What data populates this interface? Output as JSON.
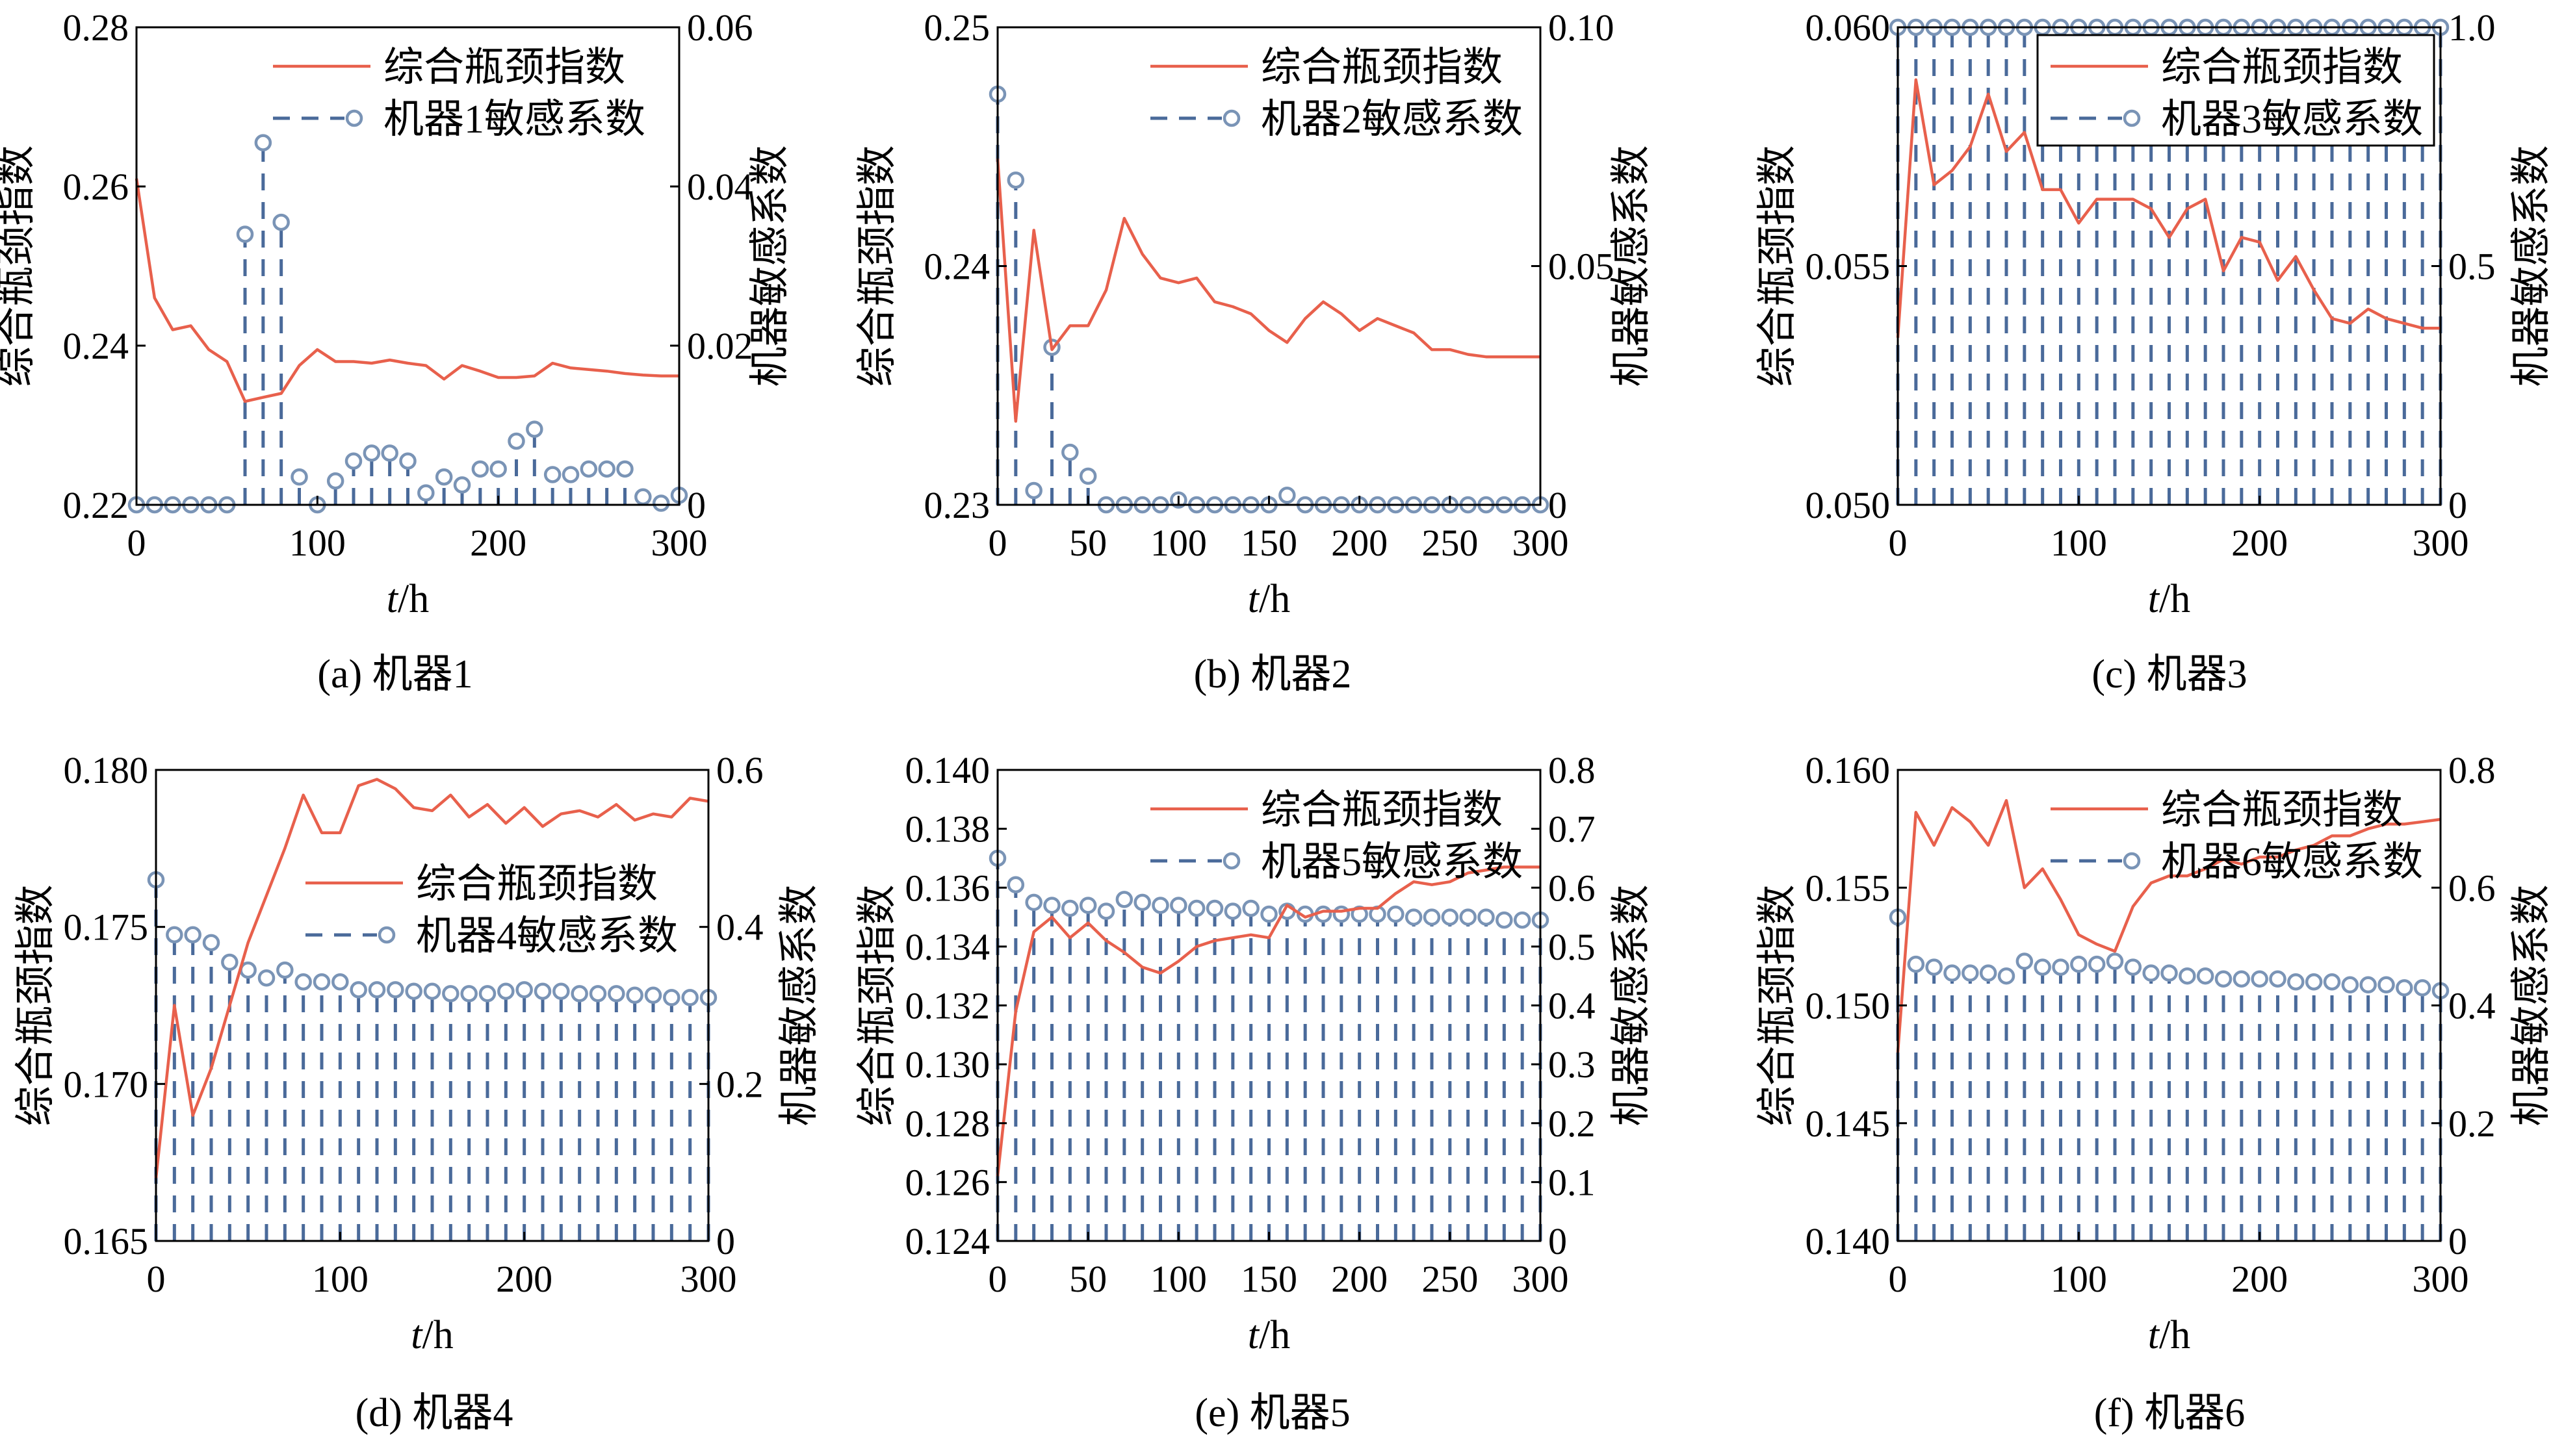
{
  "colors": {
    "bottleneck_line": "#e8604c",
    "stem": "#4a6a9a",
    "marker_edge": "#7a94b6",
    "marker_face": "#ffffff",
    "axis": "#000000"
  },
  "legend": {
    "line_label": "综合瓶颈指数",
    "stem_labels": [
      "机器1敏感系数",
      "机器2敏感系数",
      "机器3敏感系数",
      "机器4敏感系数",
      "机器5敏感系数",
      "机器6敏感系数"
    ]
  },
  "chart_data": [
    {
      "type": "line+stem",
      "caption": "(a) 机器1",
      "xlabel": "t/h",
      "ylabel_left": "综合瓶颈指数",
      "ylabel_right": "机器敏感系数",
      "xlim": [
        0,
        300
      ],
      "xticks": [
        "0",
        "100",
        "200",
        "300"
      ],
      "ylim_left": [
        0.22,
        0.28
      ],
      "yticks_left": [
        "0.22",
        "0.24",
        "0.26",
        "0.28"
      ],
      "ylim_right": [
        0,
        0.06
      ],
      "yticks_right": [
        "0",
        "0.02",
        "0.04",
        "0.06"
      ],
      "legend_position": "top-right",
      "legend_box": false,
      "line": {
        "x": [
          0,
          10,
          20,
          30,
          40,
          50,
          60,
          70,
          80,
          90,
          100,
          110,
          120,
          130,
          140,
          150,
          160,
          170,
          180,
          190,
          200,
          210,
          220,
          230,
          240,
          250,
          260,
          270,
          280,
          290,
          300
        ],
        "y": [
          0.261,
          0.246,
          0.242,
          0.2425,
          0.2395,
          0.238,
          0.233,
          0.2335,
          0.234,
          0.2375,
          0.2395,
          0.238,
          0.238,
          0.2378,
          0.2382,
          0.2378,
          0.2375,
          0.2358,
          0.2375,
          0.2368,
          0.236,
          0.236,
          0.2362,
          0.2378,
          0.2372,
          0.237,
          0.2368,
          0.2365,
          0.2363,
          0.2362,
          0.2362
        ]
      },
      "stems": {
        "x": [
          0,
          10,
          20,
          30,
          40,
          50,
          60,
          70,
          80,
          90,
          100,
          110,
          120,
          130,
          140,
          150,
          160,
          170,
          180,
          190,
          200,
          210,
          220,
          230,
          240,
          250,
          260,
          270,
          280,
          290,
          300
        ],
        "y": [
          0,
          0,
          0,
          0,
          0,
          0,
          0.034,
          0.0455,
          0.0355,
          0.0035,
          0,
          0.003,
          0.0055,
          0.0065,
          0.0065,
          0.0055,
          0.0015,
          0.0035,
          0.0025,
          0.0045,
          0.0045,
          0.008,
          0.0095,
          0.0038,
          0.0038,
          0.0045,
          0.0045,
          0.0045,
          0.001,
          0.0002,
          0.0012
        ]
      }
    },
    {
      "type": "line+stem",
      "caption": "(b) 机器2",
      "xlabel": "t/h",
      "ylabel_left": "综合瓶颈指数",
      "ylabel_right": "机器敏感系数",
      "xlim": [
        0,
        300
      ],
      "xticks": [
        "0",
        "50",
        "100",
        "150",
        "200",
        "250",
        "300"
      ],
      "ylim_left": [
        0.23,
        0.25
      ],
      "yticks_left": [
        "0.23",
        "0.24",
        "0.25"
      ],
      "ylim_right": [
        0,
        0.1
      ],
      "yticks_right": [
        "0",
        "0.05",
        "0.10"
      ],
      "legend_position": "top-right",
      "legend_box": false,
      "line": {
        "x": [
          0,
          10,
          20,
          30,
          40,
          50,
          60,
          70,
          80,
          90,
          100,
          110,
          120,
          130,
          140,
          150,
          160,
          170,
          180,
          190,
          200,
          210,
          220,
          230,
          240,
          250,
          260,
          270,
          280,
          290,
          300
        ],
        "y": [
          0.2445,
          0.2335,
          0.2415,
          0.2365,
          0.2375,
          0.2375,
          0.239,
          0.242,
          0.2405,
          0.2395,
          0.2393,
          0.2395,
          0.2385,
          0.2383,
          0.238,
          0.2373,
          0.2368,
          0.2378,
          0.2385,
          0.238,
          0.2373,
          0.2378,
          0.2375,
          0.2372,
          0.2365,
          0.2365,
          0.2363,
          0.2362,
          0.2362,
          0.2362,
          0.2362
        ]
      },
      "stems": {
        "x": [
          0,
          10,
          20,
          30,
          40,
          50,
          60,
          70,
          80,
          90,
          100,
          110,
          120,
          130,
          140,
          150,
          160,
          170,
          180,
          190,
          200,
          210,
          220,
          230,
          240,
          250,
          260,
          270,
          280,
          290,
          300
        ],
        "y": [
          0.086,
          0.068,
          0.003,
          0.033,
          0.011,
          0.006,
          0,
          0,
          0,
          0,
          0.001,
          0,
          0,
          0,
          0,
          0,
          0.002,
          0,
          0,
          0,
          0,
          0,
          0,
          0,
          0,
          0,
          0,
          0,
          0,
          0,
          0
        ]
      }
    },
    {
      "type": "line+stem",
      "caption": "(c) 机器3",
      "xlabel": "t/h",
      "ylabel_left": "综合瓶颈指数",
      "ylabel_right": "机器敏感系数",
      "xlim": [
        0,
        300
      ],
      "xticks": [
        "0",
        "100",
        "200",
        "300"
      ],
      "ylim_left": [
        0.05,
        0.06
      ],
      "yticks_left": [
        "0.050",
        "0.055",
        "0.060"
      ],
      "ylim_right": [
        0,
        1
      ],
      "yticks_right": [
        "0",
        "0.5",
        "1.0"
      ],
      "legend_position": "top-right",
      "legend_box": true,
      "line": {
        "x": [
          0,
          10,
          20,
          30,
          40,
          50,
          60,
          70,
          80,
          90,
          100,
          110,
          120,
          130,
          140,
          150,
          160,
          170,
          180,
          190,
          200,
          210,
          220,
          230,
          240,
          250,
          260,
          270,
          280,
          290,
          300
        ],
        "y": [
          0.0535,
          0.0589,
          0.0567,
          0.057,
          0.0575,
          0.0586,
          0.0574,
          0.0578,
          0.0566,
          0.0566,
          0.0559,
          0.0564,
          0.0564,
          0.0564,
          0.0562,
          0.0556,
          0.0562,
          0.0564,
          0.0549,
          0.0556,
          0.0555,
          0.0547,
          0.0552,
          0.0545,
          0.0539,
          0.0538,
          0.0541,
          0.0539,
          0.0538,
          0.0537,
          0.0537
        ]
      },
      "stems": {
        "x": [
          0,
          10,
          20,
          30,
          40,
          50,
          60,
          70,
          80,
          90,
          100,
          110,
          120,
          130,
          140,
          150,
          160,
          170,
          180,
          190,
          200,
          210,
          220,
          230,
          240,
          250,
          260,
          270,
          280,
          290,
          300
        ],
        "y": [
          1,
          1,
          1,
          1,
          1,
          1,
          1,
          1,
          1,
          1,
          1,
          1,
          1,
          1,
          1,
          1,
          1,
          1,
          1,
          1,
          1,
          1,
          1,
          1,
          1,
          1,
          1,
          1,
          1,
          1,
          1
        ]
      }
    },
    {
      "type": "line+stem",
      "caption": "(d) 机器4",
      "xlabel": "t/h",
      "ylabel_left": "综合瓶颈指数",
      "ylabel_right": "机器敏感系数",
      "xlim": [
        0,
        300
      ],
      "xticks": [
        "0",
        "100",
        "200",
        "300"
      ],
      "ylim_left": [
        0.165,
        0.18
      ],
      "yticks_left": [
        "0.165",
        "0.170",
        "0.175",
        "0.180"
      ],
      "ylim_right": [
        0,
        0.6
      ],
      "yticks_right": [
        "0",
        "0.2",
        "0.4",
        "0.6"
      ],
      "legend_position": "center-right",
      "legend_box": false,
      "line": {
        "x": [
          0,
          10,
          20,
          30,
          40,
          50,
          60,
          70,
          80,
          90,
          100,
          110,
          120,
          130,
          140,
          150,
          160,
          170,
          180,
          190,
          200,
          210,
          220,
          230,
          240,
          250,
          260,
          270,
          280,
          290,
          300
        ],
        "y": [
          0.167,
          0.1725,
          0.169,
          0.1705,
          0.1725,
          0.1745,
          0.176,
          0.1775,
          0.1792,
          0.178,
          0.178,
          0.1795,
          0.1797,
          0.1794,
          0.1788,
          0.1787,
          0.1792,
          0.1785,
          0.1789,
          0.1783,
          0.1788,
          0.1782,
          0.1786,
          0.1787,
          0.1785,
          0.1789,
          0.1784,
          0.1786,
          0.1785,
          0.1791,
          0.179
        ]
      },
      "stems": {
        "x": [
          0,
          10,
          20,
          30,
          40,
          50,
          60,
          70,
          80,
          90,
          100,
          110,
          120,
          130,
          140,
          150,
          160,
          170,
          180,
          190,
          200,
          210,
          220,
          230,
          240,
          250,
          260,
          270,
          280,
          290,
          300
        ],
        "y": [
          0.46,
          0.39,
          0.39,
          0.38,
          0.355,
          0.345,
          0.335,
          0.345,
          0.33,
          0.33,
          0.33,
          0.32,
          0.32,
          0.32,
          0.318,
          0.318,
          0.315,
          0.315,
          0.315,
          0.318,
          0.32,
          0.318,
          0.318,
          0.315,
          0.315,
          0.315,
          0.313,
          0.313,
          0.31,
          0.31,
          0.31
        ]
      }
    },
    {
      "type": "line+stem",
      "caption": "(e) 机器5",
      "xlabel": "t/h",
      "ylabel_left": "综合瓶颈指数",
      "ylabel_right": "机器敏感系数",
      "xlim": [
        0,
        300
      ],
      "xticks": [
        "0",
        "50",
        "100",
        "150",
        "200",
        "250",
        "300"
      ],
      "ylim_left": [
        0.124,
        0.14
      ],
      "yticks_left": [
        "0.124",
        "0.126",
        "0.128",
        "0.130",
        "0.132",
        "0.134",
        "0.136",
        "0.138",
        "0.140"
      ],
      "ylim_right": [
        0,
        0.8
      ],
      "yticks_right": [
        "0",
        "0.1",
        "0.2",
        "0.3",
        "0.4",
        "0.5",
        "0.6",
        "0.7",
        "0.8"
      ],
      "legend_position": "top-right",
      "legend_box": false,
      "line": {
        "x": [
          0,
          10,
          20,
          30,
          40,
          50,
          60,
          70,
          80,
          90,
          100,
          110,
          120,
          130,
          140,
          150,
          160,
          170,
          180,
          190,
          200,
          210,
          220,
          230,
          240,
          250,
          260,
          270,
          280,
          290,
          300
        ],
        "y": [
          0.1262,
          0.1318,
          0.1345,
          0.135,
          0.1343,
          0.1348,
          0.1342,
          0.1338,
          0.1333,
          0.1331,
          0.1335,
          0.134,
          0.1342,
          0.1343,
          0.1344,
          0.1343,
          0.1354,
          0.135,
          0.1352,
          0.1352,
          0.1353,
          0.1353,
          0.1358,
          0.1362,
          0.1361,
          0.1362,
          0.1365,
          0.1366,
          0.1367,
          0.1367,
          0.1367
        ]
      },
      "stems": {
        "x": [
          0,
          10,
          20,
          30,
          40,
          50,
          60,
          70,
          80,
          90,
          100,
          110,
          120,
          130,
          140,
          150,
          160,
          170,
          180,
          190,
          200,
          210,
          220,
          230,
          240,
          250,
          260,
          270,
          280,
          290,
          300
        ],
        "y": [
          0.65,
          0.605,
          0.575,
          0.57,
          0.565,
          0.57,
          0.56,
          0.58,
          0.575,
          0.57,
          0.57,
          0.565,
          0.565,
          0.56,
          0.565,
          0.555,
          0.56,
          0.555,
          0.555,
          0.555,
          0.555,
          0.555,
          0.555,
          0.55,
          0.55,
          0.55,
          0.55,
          0.55,
          0.545,
          0.545,
          0.545
        ]
      }
    },
    {
      "type": "line+stem",
      "caption": "(f) 机器6",
      "xlabel": "t/h",
      "ylabel_left": "综合瓶颈指数",
      "ylabel_right": "机器敏感系数",
      "xlim": [
        0,
        300
      ],
      "xticks": [
        "0",
        "100",
        "200",
        "300"
      ],
      "ylim_left": [
        0.14,
        0.16
      ],
      "yticks_left": [
        "0.140",
        "0.145",
        "0.150",
        "0.155",
        "0.160"
      ],
      "ylim_right": [
        0,
        0.8
      ],
      "yticks_right": [
        "0",
        "0.2",
        "0.4",
        "0.6",
        "0.8"
      ],
      "legend_position": "top-right",
      "legend_box": false,
      "line": {
        "x": [
          0,
          10,
          20,
          30,
          40,
          50,
          60,
          70,
          80,
          90,
          100,
          110,
          120,
          130,
          140,
          150,
          160,
          170,
          180,
          190,
          200,
          210,
          220,
          230,
          240,
          250,
          260,
          270,
          280,
          290,
          300
        ],
        "y": [
          0.148,
          0.1582,
          0.1568,
          0.1584,
          0.1578,
          0.1568,
          0.1587,
          0.155,
          0.1558,
          0.1545,
          0.153,
          0.1526,
          0.1523,
          0.1542,
          0.1552,
          0.1555,
          0.1555,
          0.1558,
          0.1562,
          0.156,
          0.1563,
          0.1563,
          0.1566,
          0.1568,
          0.1572,
          0.1572,
          0.1575,
          0.1577,
          0.1577,
          0.1578,
          0.1579
        ]
      },
      "stems": {
        "x": [
          0,
          10,
          20,
          30,
          40,
          50,
          60,
          70,
          80,
          90,
          100,
          110,
          120,
          130,
          140,
          150,
          160,
          170,
          180,
          190,
          200,
          210,
          220,
          230,
          240,
          250,
          260,
          270,
          280,
          290,
          300
        ],
        "y": [
          0.55,
          0.47,
          0.465,
          0.455,
          0.455,
          0.455,
          0.45,
          0.475,
          0.465,
          0.465,
          0.47,
          0.47,
          0.475,
          0.465,
          0.455,
          0.455,
          0.45,
          0.45,
          0.445,
          0.445,
          0.445,
          0.445,
          0.44,
          0.44,
          0.44,
          0.435,
          0.435,
          0.435,
          0.43,
          0.43,
          0.425
        ]
      }
    }
  ]
}
